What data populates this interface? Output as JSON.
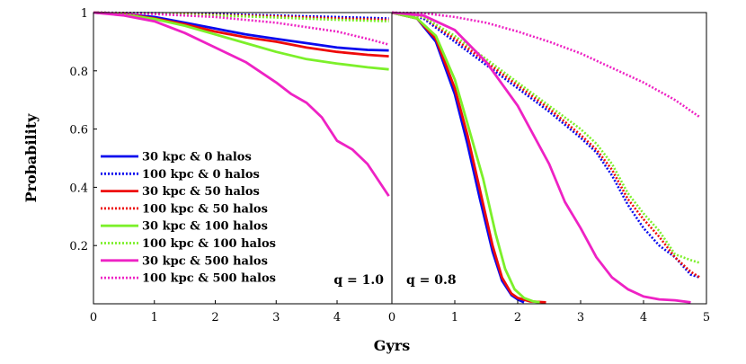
{
  "chart_data": {
    "type": "line",
    "ylabel": "Probability",
    "xlabel": "Gyrs",
    "colors": {
      "blue": "#0a0aee",
      "red": "#ee0a0a",
      "green": "#7cf02a",
      "magenta": "#ee22c4"
    },
    "legend": [
      {
        "label": "30 kpc & 0 halos",
        "color": "#0a0aee",
        "style": "solid"
      },
      {
        "label": "100 kpc & 0 halos",
        "color": "#0a0aee",
        "style": "dotted"
      },
      {
        "label": "30 kpc & 50 halos",
        "color": "#ee0a0a",
        "style": "solid"
      },
      {
        "label": "100 kpc & 50 halos",
        "color": "#ee0a0a",
        "style": "dotted"
      },
      {
        "label": "30 kpc & 100 halos",
        "color": "#7cf02a",
        "style": "solid"
      },
      {
        "label": "100 kpc & 100 halos",
        "color": "#7cf02a",
        "style": "dotted"
      },
      {
        "label": "30 kpc & 500 halos",
        "color": "#ee22c4",
        "style": "solid"
      },
      {
        "label": "100 kpc & 500 halos",
        "color": "#ee22c4",
        "style": "dotted"
      }
    ],
    "panels": [
      {
        "label": "q = 1.0",
        "xlim": [
          0,
          4.9
        ],
        "ylim": [
          0.0,
          1.0
        ],
        "xticks": [
          0,
          1,
          2,
          3,
          4
        ],
        "yticks": [
          0.2,
          0.4,
          0.6,
          0.8,
          1
        ],
        "ytick_labels": [
          "0.2",
          "0.4",
          "0.6",
          "0.8",
          "1"
        ],
        "series": [
          {
            "name": "30 kpc & 0 halos",
            "color": "#0a0aee",
            "style": "solid",
            "x": [
              0,
              0.5,
              1,
              1.5,
              2,
              2.5,
              3,
              3.5,
              4,
              4.5,
              4.85
            ],
            "y": [
              1.0,
              0.995,
              0.985,
              0.965,
              0.945,
              0.925,
              0.91,
              0.895,
              0.88,
              0.872,
              0.87
            ]
          },
          {
            "name": "100 kpc & 0 halos",
            "color": "#0a0aee",
            "style": "dotted",
            "x": [
              0,
              1,
              2,
              3,
              4,
              4.85
            ],
            "y": [
              1.0,
              0.998,
              0.995,
              0.99,
              0.985,
              0.98
            ]
          },
          {
            "name": "30 kpc & 50 halos",
            "color": "#ee0a0a",
            "style": "solid",
            "x": [
              0,
              0.5,
              1,
              1.5,
              2,
              2.5,
              3,
              3.5,
              4,
              4.5,
              4.85
            ],
            "y": [
              1.0,
              0.995,
              0.98,
              0.96,
              0.935,
              0.915,
              0.9,
              0.88,
              0.865,
              0.855,
              0.85
            ]
          },
          {
            "name": "100 kpc & 50 halos",
            "color": "#ee0a0a",
            "style": "dotted",
            "x": [
              0,
              1,
              2,
              3,
              4,
              4.85
            ],
            "y": [
              1.0,
              0.997,
              0.992,
              0.987,
              0.98,
              0.975
            ]
          },
          {
            "name": "30 kpc & 100 halos",
            "color": "#7cf02a",
            "style": "solid",
            "x": [
              0,
              0.5,
              1,
              1.5,
              2,
              2.5,
              3,
              3.5,
              4,
              4.5,
              4.85
            ],
            "y": [
              1.0,
              0.993,
              0.978,
              0.955,
              0.925,
              0.895,
              0.865,
              0.84,
              0.825,
              0.812,
              0.805
            ]
          },
          {
            "name": "100 kpc & 100 halos",
            "color": "#7cf02a",
            "style": "dotted",
            "x": [
              0,
              1,
              2,
              3,
              4,
              4.85
            ],
            "y": [
              1.0,
              0.996,
              0.99,
              0.983,
              0.975,
              0.97
            ]
          },
          {
            "name": "30 kpc & 500 halos",
            "color": "#ee22c4",
            "style": "solid",
            "x": [
              0,
              0.5,
              1,
              1.5,
              2,
              2.5,
              3,
              3.25,
              3.5,
              3.75,
              4,
              4.25,
              4.5,
              4.85
            ],
            "y": [
              1.0,
              0.99,
              0.97,
              0.93,
              0.88,
              0.83,
              0.76,
              0.72,
              0.69,
              0.64,
              0.56,
              0.53,
              0.48,
              0.37
            ]
          },
          {
            "name": "100 kpc & 500 halos",
            "color": "#ee22c4",
            "style": "dotted",
            "x": [
              0,
              1,
              2,
              3,
              3.5,
              4,
              4.5,
              4.85
            ],
            "y": [
              1.0,
              0.995,
              0.985,
              0.965,
              0.95,
              0.935,
              0.91,
              0.89
            ]
          }
        ]
      },
      {
        "label": "q = 0.8",
        "xlim": [
          0,
          5
        ],
        "ylim": [
          0.0,
          1.0
        ],
        "xticks": [
          0,
          1,
          2,
          3,
          4,
          5
        ],
        "series": [
          {
            "name": "30 kpc & 0 halos",
            "color": "#0a0aee",
            "style": "solid",
            "x": [
              0,
              0.4,
              0.7,
              1.0,
              1.2,
              1.4,
              1.6,
              1.75,
              1.9,
              2.0,
              2.1
            ],
            "y": [
              1.0,
              0.98,
              0.9,
              0.72,
              0.55,
              0.36,
              0.18,
              0.08,
              0.03,
              0.015,
              0.005
            ]
          },
          {
            "name": "100 kpc & 0 halos",
            "color": "#0a0aee",
            "style": "dotted",
            "x": [
              0,
              0.5,
              1,
              1.5,
              2,
              2.5,
              3,
              3.25,
              3.5,
              3.75,
              4,
              4.25,
              4.5,
              4.75,
              4.9
            ],
            "y": [
              1.0,
              0.98,
              0.9,
              0.82,
              0.74,
              0.66,
              0.57,
              0.52,
              0.44,
              0.34,
              0.26,
              0.2,
              0.16,
              0.1,
              0.09
            ]
          },
          {
            "name": "30 kpc & 50 halos",
            "color": "#ee0a0a",
            "style": "solid",
            "x": [
              0,
              0.4,
              0.7,
              1.0,
              1.2,
              1.4,
              1.6,
              1.75,
              1.9,
              2.0,
              2.2,
              2.45
            ],
            "y": [
              1.0,
              0.98,
              0.91,
              0.74,
              0.58,
              0.39,
              0.2,
              0.09,
              0.035,
              0.02,
              0.008,
              0.005
            ]
          },
          {
            "name": "100 kpc & 50 halos",
            "color": "#ee0a0a",
            "style": "dotted",
            "x": [
              0,
              0.5,
              1,
              1.5,
              2,
              2.5,
              3,
              3.25,
              3.5,
              3.75,
              4,
              4.25,
              4.5,
              4.75,
              4.9
            ],
            "y": [
              1.0,
              0.985,
              0.91,
              0.83,
              0.75,
              0.67,
              0.58,
              0.53,
              0.46,
              0.36,
              0.29,
              0.23,
              0.16,
              0.11,
              0.09
            ]
          },
          {
            "name": "30 kpc & 100 halos",
            "color": "#7cf02a",
            "style": "solid",
            "x": [
              0,
              0.4,
              0.7,
              1.0,
              1.2,
              1.45,
              1.65,
              1.8,
              1.95,
              2.1,
              2.25,
              2.35
            ],
            "y": [
              1.0,
              0.98,
              0.92,
              0.77,
              0.62,
              0.43,
              0.24,
              0.12,
              0.05,
              0.02,
              0.008,
              0.005
            ]
          },
          {
            "name": "100 kpc & 100 halos",
            "color": "#7cf02a",
            "style": "dotted",
            "x": [
              0,
              0.5,
              1,
              1.5,
              2,
              2.5,
              3,
              3.25,
              3.5,
              3.75,
              4,
              4.25,
              4.5,
              4.75,
              4.9
            ],
            "y": [
              1.0,
              0.985,
              0.92,
              0.84,
              0.76,
              0.68,
              0.6,
              0.55,
              0.48,
              0.38,
              0.31,
              0.25,
              0.17,
              0.15,
              0.14
            ]
          },
          {
            "name": "30 kpc & 500 halos",
            "color": "#ee22c4",
            "style": "solid",
            "x": [
              0,
              0.5,
              1.0,
              1.5,
              2.0,
              2.5,
              2.75,
              3.0,
              3.25,
              3.5,
              3.75,
              4.0,
              4.25,
              4.5,
              4.75
            ],
            "y": [
              1.0,
              0.99,
              0.94,
              0.83,
              0.68,
              0.48,
              0.35,
              0.26,
              0.16,
              0.09,
              0.05,
              0.025,
              0.015,
              0.012,
              0.005
            ]
          },
          {
            "name": "100 kpc & 500 halos",
            "color": "#ee22c4",
            "style": "dotted",
            "x": [
              0,
              0.5,
              1,
              1.5,
              2,
              2.5,
              3,
              3.5,
              4,
              4.5,
              4.9
            ],
            "y": [
              1.0,
              0.998,
              0.985,
              0.965,
              0.935,
              0.9,
              0.86,
              0.81,
              0.76,
              0.7,
              0.64
            ]
          }
        ]
      }
    ]
  }
}
